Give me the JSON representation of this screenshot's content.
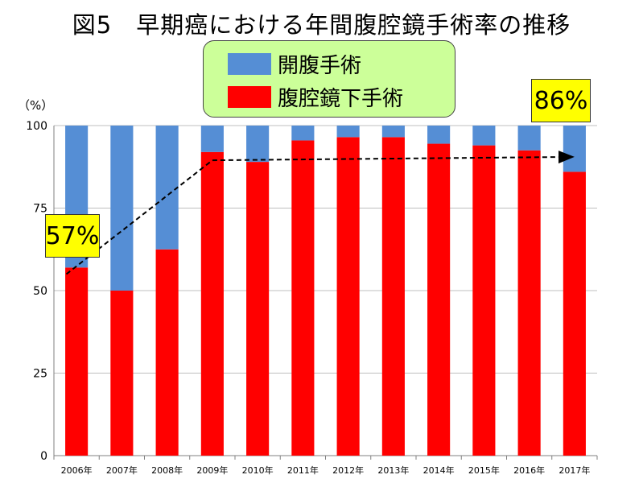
{
  "title": "図5　早期癌における年間腹腔鏡手術率の推移",
  "unit_label": "（%）",
  "callouts": {
    "start": "57%",
    "end": "86%"
  },
  "colors": {
    "open": "#558ed5",
    "laparoscopic": "#ff0000",
    "legend_bg": "#ccff99",
    "callout_bg": "#ffff00"
  },
  "chart_data": {
    "type": "bar",
    "stacked": true,
    "categories": [
      "2006年",
      "2007年",
      "2008年",
      "2009年",
      "2010年",
      "2011年",
      "2012年",
      "2013年",
      "2014年",
      "2015年",
      "2016年",
      "2017年"
    ],
    "series": [
      {
        "name": "腹腔鏡下手術",
        "color": "#ff0000",
        "values": [
          57,
          50,
          62.5,
          92,
          89,
          95.5,
          96.5,
          96.5,
          94.5,
          94,
          92.5,
          86
        ]
      },
      {
        "name": "開腹手術",
        "color": "#558ed5",
        "values": [
          43,
          50,
          37.5,
          8,
          11,
          4.5,
          3.5,
          3.5,
          5.5,
          6,
          7.5,
          14
        ]
      }
    ],
    "yticks": [
      0,
      25,
      50,
      75,
      100
    ],
    "ylim": [
      0,
      100
    ],
    "trend_line": {
      "style": "dashed-arrow",
      "points": [
        [
          "2006年",
          55
        ],
        [
          "2009年",
          89.5
        ],
        [
          "2017年",
          90.5
        ]
      ]
    },
    "legend_position": "top-center"
  }
}
